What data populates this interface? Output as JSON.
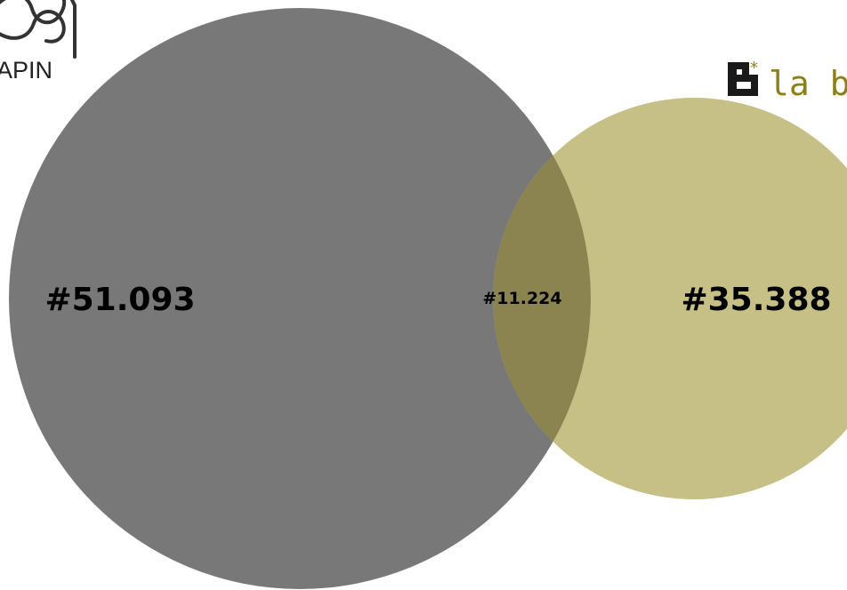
{
  "left_set": {
    "logo_text": "APIN",
    "count": "#51.093",
    "color": "#787878"
  },
  "right_set": {
    "logo_text": "la b",
    "count": "#35.388",
    "color": "#c6c086",
    "logo_accent": "#8c8119"
  },
  "intersection": {
    "count": "#11.224",
    "color": "#8b8350"
  }
}
